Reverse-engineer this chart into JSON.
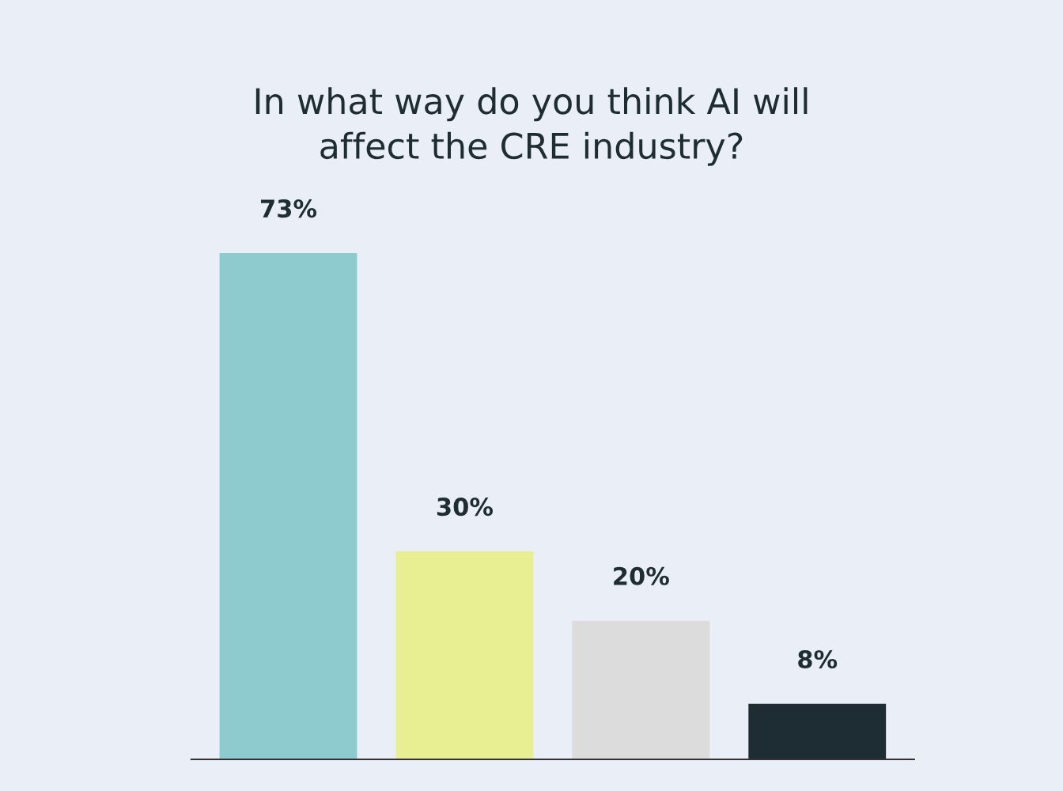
{
  "chart_data": {
    "type": "bar",
    "title": "In what way do you think AI will\naffect the CRE industry?",
    "categories": [
      null,
      null,
      null,
      null
    ],
    "values": [
      73,
      30,
      20,
      8
    ],
    "value_labels": [
      "73%",
      "30%",
      "20%",
      "8%"
    ],
    "colors": [
      "#8ecbcf",
      "#e8ee92",
      "#dcdcdc",
      "#1e2d33"
    ],
    "grid": false,
    "legend": false
  }
}
